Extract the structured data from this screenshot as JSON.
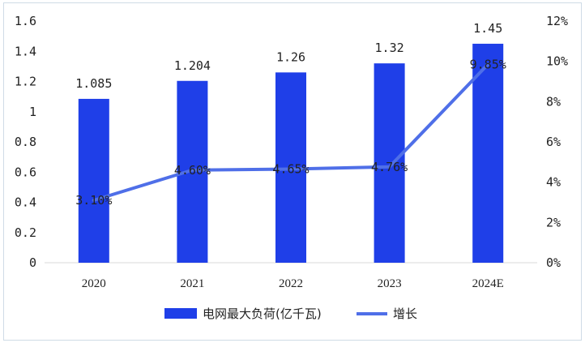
{
  "chart_data": {
    "type": "bar+line",
    "categories": [
      "2020",
      "2021",
      "2022",
      "2023",
      "2024E"
    ],
    "series": [
      {
        "name": "电网最大负荷(亿千瓦)",
        "type": "bar",
        "axis": "left",
        "values": [
          1.085,
          1.204,
          1.26,
          1.32,
          1.45
        ],
        "labels": [
          "1.085",
          "1.204",
          "1.26",
          "1.32",
          "1.45"
        ],
        "color": "#1f3fe8"
      },
      {
        "name": "增长",
        "type": "line",
        "axis": "right",
        "values": [
          3.1,
          4.6,
          4.65,
          4.76,
          9.85
        ],
        "labels": [
          "3.10%",
          "4.60%",
          "4.65%",
          "4.76%",
          "9.85%"
        ],
        "color": "#4f6fe8"
      }
    ],
    "y_left": {
      "ylim": [
        0,
        1.6
      ],
      "ticks": [
        "0",
        "0.2",
        "0.4",
        "0.6",
        "0.8",
        "1",
        "1.2",
        "1.4",
        "1.6"
      ]
    },
    "y_right": {
      "ylim": [
        0,
        12
      ],
      "ticks": [
        "0%",
        "2%",
        "4%",
        "6%",
        "8%",
        "10%",
        "12%"
      ]
    },
    "grid": false,
    "legend": "bottom"
  }
}
